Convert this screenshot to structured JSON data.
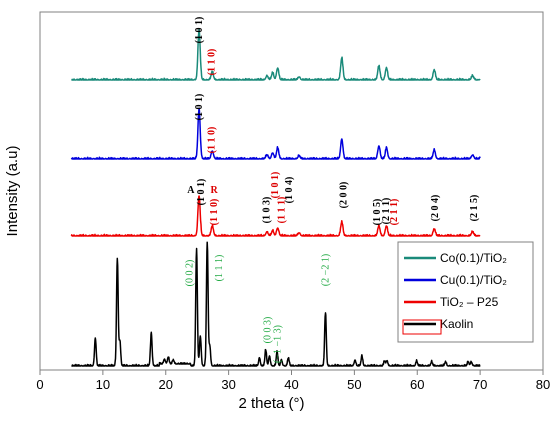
{
  "chart_data": {
    "type": "line",
    "xlabel": "2 theta (°)",
    "ylabel": "Intensity (a.u)",
    "xlim": [
      0,
      80
    ],
    "x_ticks": [
      "0",
      "10",
      "20",
      "30",
      "40",
      "50",
      "60",
      "70",
      "80"
    ],
    "grid": false,
    "legend_position": "right",
    "series": [
      {
        "name": "Co(0.1)/TiO₂",
        "color": "#1a8a7a",
        "peaks": [
          [
            25.3,
            50
          ],
          [
            27.4,
            8
          ],
          [
            36.1,
            4
          ],
          [
            37.0,
            7
          ],
          [
            37.8,
            12
          ],
          [
            41.2,
            3
          ],
          [
            48.0,
            22
          ],
          [
            53.9,
            14
          ],
          [
            55.1,
            12
          ],
          [
            62.7,
            10
          ],
          [
            68.8,
            4
          ],
          [
            70.3,
            4
          ]
        ]
      },
      {
        "name": "Cu(0.1)/TiO₂",
        "color": "#0000dd",
        "peaks": [
          [
            25.3,
            50
          ],
          [
            27.4,
            8
          ],
          [
            36.1,
            4
          ],
          [
            37.0,
            6
          ],
          [
            37.8,
            11
          ],
          [
            41.2,
            3
          ],
          [
            48.0,
            20
          ],
          [
            53.9,
            13
          ],
          [
            55.1,
            11
          ],
          [
            62.7,
            9
          ],
          [
            68.8,
            4
          ],
          [
            70.3,
            4
          ]
        ]
      },
      {
        "name": "TiO₂ – P25",
        "color": "#ee0000",
        "peaks": [
          [
            25.3,
            40
          ],
          [
            27.4,
            10
          ],
          [
            36.1,
            4
          ],
          [
            37.0,
            5
          ],
          [
            37.8,
            8
          ],
          [
            41.2,
            3
          ],
          [
            48.0,
            14
          ],
          [
            53.9,
            10
          ],
          [
            55.1,
            10
          ],
          [
            62.7,
            7
          ],
          [
            68.8,
            4
          ],
          [
            70.3,
            3
          ]
        ]
      },
      {
        "name": "Kaolin",
        "color": "#000000",
        "peaks": [
          [
            8.8,
            28
          ],
          [
            12.3,
            107
          ],
          [
            12.7,
            25
          ],
          [
            17.7,
            33
          ],
          [
            19.8,
            5
          ],
          [
            20.4,
            7
          ],
          [
            21.2,
            4
          ],
          [
            24.9,
            116
          ],
          [
            25.5,
            30
          ],
          [
            26.6,
            123
          ],
          [
            27.0,
            20
          ],
          [
            34.9,
            8
          ],
          [
            35.9,
            16
          ],
          [
            36.5,
            10
          ],
          [
            37.7,
            14
          ],
          [
            38.4,
            6
          ],
          [
            39.5,
            8
          ],
          [
            45.4,
            53
          ],
          [
            50.1,
            6
          ],
          [
            51.2,
            10
          ],
          [
            54.8,
            5
          ],
          [
            55.2,
            5
          ],
          [
            59.9,
            5
          ],
          [
            62.3,
            4
          ],
          [
            64.5,
            4
          ],
          [
            68.1,
            4
          ],
          [
            68.6,
            4
          ]
        ]
      }
    ],
    "annotations": {
      "co": [
        {
          "text": "(1 0 1)",
          "color": "#000000",
          "x": 25.3
        },
        {
          "text": "(1 1 0)",
          "color": "#dd0000",
          "x": 27.3
        }
      ],
      "cu": [
        {
          "text": "(1 0 1)",
          "color": "#000000",
          "x": 25.3
        },
        {
          "text": "(1 1 0)",
          "color": "#dd0000",
          "x": 27.3
        }
      ],
      "p25": [
        {
          "text": "A",
          "color": "#000000",
          "x": 24.0,
          "horizontal": true
        },
        {
          "text": "(1 0 1)",
          "color": "#000000",
          "x": 25.6
        },
        {
          "text": "R",
          "color": "#dd0000",
          "x": 27.7,
          "horizontal": true
        },
        {
          "text": "(1 1 0)",
          "color": "#dd0000",
          "x": 27.7
        },
        {
          "text": "(1 0 3)",
          "color": "#000000",
          "x": 36.0
        },
        {
          "text": "(1 0 1)",
          "color": "#dd0000",
          "x": 37.4
        },
        {
          "text": "(1 1 1)",
          "color": "#dd0000",
          "x": 38.4
        },
        {
          "text": "(1 0 4)",
          "color": "#000000",
          "x": 39.6
        },
        {
          "text": "(2 0 0)",
          "color": "#000000",
          "x": 48.3
        },
        {
          "text": "(1 0 5)",
          "color": "#000000",
          "x": 53.6
        },
        {
          "text": "(2 1 1)",
          "color": "#000000",
          "x": 55.0
        },
        {
          "text": "(2 1 1)",
          "color": "#dd0000",
          "x": 56.3
        },
        {
          "text": "(2 0 4)",
          "color": "#000000",
          "x": 62.8
        },
        {
          "text": "(2 1 5)",
          "color": "#000000",
          "x": 69.0
        }
      ],
      "kaolin": [
        {
          "text": "(0 0 2)",
          "color": "#22aa44",
          "x": 23.8
        },
        {
          "text": "(1 1 1)",
          "color": "#22aa44",
          "x": 28.5
        },
        {
          "text": "(0 0 3)",
          "color": "#22aa44",
          "x": 36.2
        },
        {
          "text": "(−1 −1 3)",
          "color": "#22aa44",
          "x": 37.8
        },
        {
          "text": "(2 −2   1)",
          "color": "#22aa44",
          "x": 45.4
        }
      ]
    }
  }
}
